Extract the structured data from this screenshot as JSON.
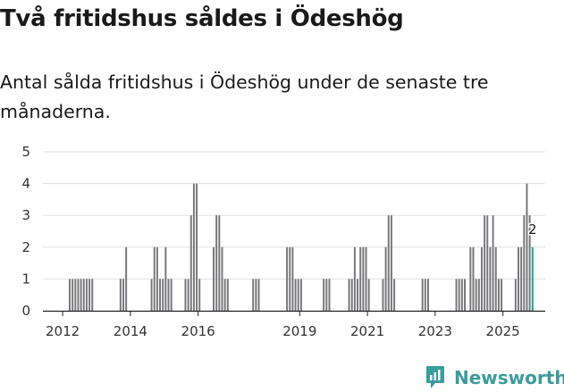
{
  "header": {
    "title": "Två fritidshus såldes i Ödeshög",
    "subtitle": "Antal sålda fritidshus i Ödeshög under de senaste tre månaderna."
  },
  "brand": {
    "name": "Newsworthy",
    "icon": "newsworthy-logo-icon"
  },
  "colors": {
    "bar": "#77777b",
    "highlight": "#1aa09b",
    "grid": "#e1e1e1",
    "axis": "#222222",
    "brand": "#3a9c9b"
  },
  "chart_data": {
    "type": "bar",
    "title": "Två fritidshus såldes i Ödeshög",
    "subtitle": "Antal sålda fritidshus i Ödeshög under de senaste tre månaderna.",
    "xlabel": "",
    "ylabel": "",
    "x_unit": "month",
    "x_range": [
      "2011-06",
      "2026-04"
    ],
    "ylim": [
      0,
      5
    ],
    "y_ticks": [
      0,
      1,
      2,
      3,
      4,
      5
    ],
    "x_ticks": [
      "2012",
      "2014",
      "2016",
      "2019",
      "2021",
      "2023",
      "2025"
    ],
    "x_tick_months": [
      "2012-01",
      "2014-01",
      "2016-01",
      "2019-01",
      "2021-01",
      "2023-01",
      "2025-01"
    ],
    "grid": true,
    "series": [
      {
        "name": "Antal sålda fritidshus",
        "points": [
          {
            "x": "2012-03",
            "y": 1
          },
          {
            "x": "2012-04",
            "y": 1
          },
          {
            "x": "2012-05",
            "y": 1
          },
          {
            "x": "2012-06",
            "y": 1
          },
          {
            "x": "2012-07",
            "y": 1
          },
          {
            "x": "2012-08",
            "y": 1
          },
          {
            "x": "2012-09",
            "y": 1
          },
          {
            "x": "2012-10",
            "y": 1
          },
          {
            "x": "2012-11",
            "y": 1
          },
          {
            "x": "2013-09",
            "y": 1
          },
          {
            "x": "2013-10",
            "y": 1
          },
          {
            "x": "2013-11",
            "y": 2
          },
          {
            "x": "2014-08",
            "y": 1
          },
          {
            "x": "2014-09",
            "y": 2
          },
          {
            "x": "2014-10",
            "y": 2
          },
          {
            "x": "2014-11",
            "y": 1
          },
          {
            "x": "2014-12",
            "y": 1
          },
          {
            "x": "2015-01",
            "y": 2
          },
          {
            "x": "2015-02",
            "y": 1
          },
          {
            "x": "2015-03",
            "y": 1
          },
          {
            "x": "2015-08",
            "y": 1
          },
          {
            "x": "2015-09",
            "y": 1
          },
          {
            "x": "2015-10",
            "y": 3
          },
          {
            "x": "2015-11",
            "y": 4
          },
          {
            "x": "2015-12",
            "y": 4
          },
          {
            "x": "2016-01",
            "y": 1
          },
          {
            "x": "2016-06",
            "y": 2
          },
          {
            "x": "2016-07",
            "y": 3
          },
          {
            "x": "2016-08",
            "y": 3
          },
          {
            "x": "2016-09",
            "y": 2
          },
          {
            "x": "2016-10",
            "y": 1
          },
          {
            "x": "2016-11",
            "y": 1
          },
          {
            "x": "2017-08",
            "y": 1
          },
          {
            "x": "2017-09",
            "y": 1
          },
          {
            "x": "2017-10",
            "y": 1
          },
          {
            "x": "2018-08",
            "y": 2
          },
          {
            "x": "2018-09",
            "y": 2
          },
          {
            "x": "2018-10",
            "y": 2
          },
          {
            "x": "2018-11",
            "y": 1
          },
          {
            "x": "2018-12",
            "y": 1
          },
          {
            "x": "2019-01",
            "y": 1
          },
          {
            "x": "2019-09",
            "y": 1
          },
          {
            "x": "2019-10",
            "y": 1
          },
          {
            "x": "2019-11",
            "y": 1
          },
          {
            "x": "2020-06",
            "y": 1
          },
          {
            "x": "2020-07",
            "y": 1
          },
          {
            "x": "2020-08",
            "y": 2
          },
          {
            "x": "2020-09",
            "y": 1
          },
          {
            "x": "2020-10",
            "y": 2
          },
          {
            "x": "2020-11",
            "y": 2
          },
          {
            "x": "2020-12",
            "y": 2
          },
          {
            "x": "2021-01",
            "y": 1
          },
          {
            "x": "2021-06",
            "y": 1
          },
          {
            "x": "2021-07",
            "y": 2
          },
          {
            "x": "2021-08",
            "y": 3
          },
          {
            "x": "2021-09",
            "y": 3
          },
          {
            "x": "2021-10",
            "y": 1
          },
          {
            "x": "2022-08",
            "y": 1
          },
          {
            "x": "2022-09",
            "y": 1
          },
          {
            "x": "2022-10",
            "y": 1
          },
          {
            "x": "2023-08",
            "y": 1
          },
          {
            "x": "2023-09",
            "y": 1
          },
          {
            "x": "2023-10",
            "y": 1
          },
          {
            "x": "2023-11",
            "y": 1
          },
          {
            "x": "2024-01",
            "y": 2
          },
          {
            "x": "2024-02",
            "y": 2
          },
          {
            "x": "2024-03",
            "y": 1
          },
          {
            "x": "2024-04",
            "y": 1
          },
          {
            "x": "2024-05",
            "y": 2
          },
          {
            "x": "2024-06",
            "y": 3
          },
          {
            "x": "2024-07",
            "y": 3
          },
          {
            "x": "2024-08",
            "y": 2
          },
          {
            "x": "2024-09",
            "y": 3
          },
          {
            "x": "2024-10",
            "y": 2
          },
          {
            "x": "2024-11",
            "y": 1
          },
          {
            "x": "2024-12",
            "y": 1
          },
          {
            "x": "2025-05",
            "y": 1
          },
          {
            "x": "2025-06",
            "y": 2
          },
          {
            "x": "2025-07",
            "y": 2
          },
          {
            "x": "2025-08",
            "y": 3
          },
          {
            "x": "2025-09",
            "y": 4
          },
          {
            "x": "2025-10",
            "y": 3
          },
          {
            "x": "2025-11",
            "y": 2,
            "highlight": true,
            "label": "2"
          }
        ]
      }
    ]
  }
}
